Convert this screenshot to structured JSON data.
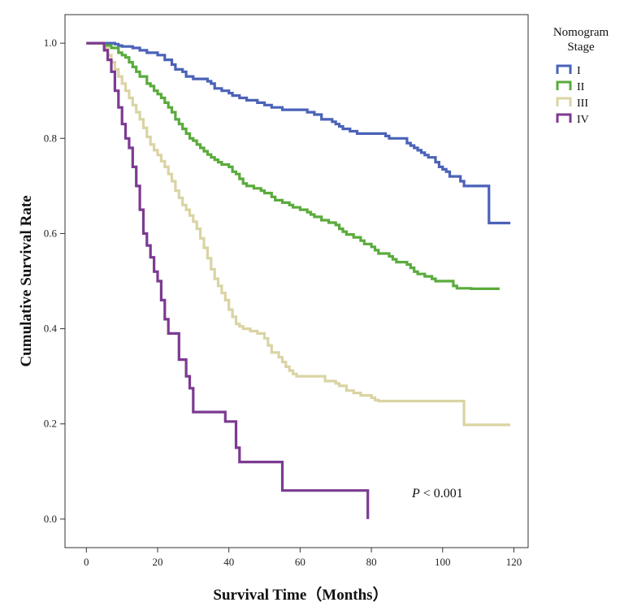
{
  "chart_data": {
    "type": "line",
    "subtype": "kaplan-meier step",
    "title": "",
    "xlabel": "Survival Time（Months）",
    "ylabel": "Cumulative Survival Rate",
    "xlim": [
      -6,
      124
    ],
    "ylim": [
      -0.06,
      1.06
    ],
    "xticks": [
      0,
      20,
      40,
      60,
      80,
      100,
      120
    ],
    "xtick_labels": [
      "0",
      "20",
      "40",
      "60",
      "80",
      "100",
      "120"
    ],
    "yticks": [
      0.0,
      0.2,
      0.4,
      0.6,
      0.8,
      1.0
    ],
    "ytick_labels": [
      "0.0",
      "0.2",
      "0.4",
      "0.6",
      "0.8",
      "1.0"
    ],
    "grid": false,
    "legend": {
      "title_lines": [
        "Nomogram",
        "Stage"
      ],
      "position": "top-right outside plot"
    },
    "annotation": {
      "italic": "P",
      "text": " < 0.001"
    },
    "series": [
      {
        "name": "I",
        "color": "#4a62b8",
        "points": [
          [
            0,
            1.0
          ],
          [
            5,
            1.0
          ],
          [
            8,
            0.998
          ],
          [
            9,
            0.995
          ],
          [
            10,
            0.993
          ],
          [
            13,
            0.99
          ],
          [
            15,
            0.985
          ],
          [
            17,
            0.98
          ],
          [
            20,
            0.975
          ],
          [
            22,
            0.965
          ],
          [
            24,
            0.955
          ],
          [
            25,
            0.945
          ],
          [
            27,
            0.94
          ],
          [
            28,
            0.93
          ],
          [
            30,
            0.925
          ],
          [
            34,
            0.92
          ],
          [
            35,
            0.915
          ],
          [
            36,
            0.905
          ],
          [
            38,
            0.9
          ],
          [
            40,
            0.895
          ],
          [
            41,
            0.89
          ],
          [
            43,
            0.885
          ],
          [
            45,
            0.88
          ],
          [
            48,
            0.875
          ],
          [
            50,
            0.87
          ],
          [
            52,
            0.865
          ],
          [
            55,
            0.86
          ],
          [
            60,
            0.86
          ],
          [
            62,
            0.855
          ],
          [
            64,
            0.85
          ],
          [
            66,
            0.84
          ],
          [
            69,
            0.835
          ],
          [
            70,
            0.83
          ],
          [
            71,
            0.825
          ],
          [
            72,
            0.82
          ],
          [
            74,
            0.815
          ],
          [
            76,
            0.81
          ],
          [
            83,
            0.81
          ],
          [
            84,
            0.805
          ],
          [
            85,
            0.8
          ],
          [
            89,
            0.8
          ],
          [
            90,
            0.79
          ],
          [
            91,
            0.785
          ],
          [
            92,
            0.78
          ],
          [
            93,
            0.775
          ],
          [
            94,
            0.77
          ],
          [
            95,
            0.765
          ],
          [
            96,
            0.76
          ],
          [
            98,
            0.75
          ],
          [
            99,
            0.74
          ],
          [
            100,
            0.735
          ],
          [
            101,
            0.73
          ],
          [
            102,
            0.72
          ],
          [
            104,
            0.72
          ],
          [
            105,
            0.71
          ],
          [
            106,
            0.7
          ],
          [
            113,
            0.7
          ],
          [
            113,
            0.622
          ],
          [
            119,
            0.622
          ]
        ]
      },
      {
        "name": "II",
        "color": "#5aab3c",
        "points": [
          [
            0,
            1.0
          ],
          [
            4,
            1.0
          ],
          [
            5,
            0.995
          ],
          [
            7,
            0.99
          ],
          [
            9,
            0.98
          ],
          [
            10,
            0.975
          ],
          [
            11,
            0.97
          ],
          [
            12,
            0.96
          ],
          [
            13,
            0.95
          ],
          [
            14,
            0.94
          ],
          [
            15,
            0.93
          ],
          [
            17,
            0.915
          ],
          [
            18,
            0.91
          ],
          [
            19,
            0.9
          ],
          [
            20,
            0.893
          ],
          [
            21,
            0.885
          ],
          [
            22,
            0.875
          ],
          [
            23,
            0.865
          ],
          [
            24,
            0.855
          ],
          [
            25,
            0.84
          ],
          [
            26,
            0.83
          ],
          [
            27,
            0.82
          ],
          [
            28,
            0.81
          ],
          [
            29,
            0.8
          ],
          [
            30,
            0.795
          ],
          [
            31,
            0.787
          ],
          [
            32,
            0.78
          ],
          [
            33,
            0.773
          ],
          [
            34,
            0.766
          ],
          [
            35,
            0.76
          ],
          [
            36,
            0.755
          ],
          [
            37,
            0.75
          ],
          [
            38,
            0.745
          ],
          [
            40,
            0.74
          ],
          [
            41,
            0.73
          ],
          [
            42,
            0.725
          ],
          [
            43,
            0.715
          ],
          [
            44,
            0.705
          ],
          [
            45,
            0.7
          ],
          [
            47,
            0.695
          ],
          [
            49,
            0.69
          ],
          [
            50,
            0.685
          ],
          [
            52,
            0.677
          ],
          [
            53,
            0.67
          ],
          [
            55,
            0.665
          ],
          [
            57,
            0.66
          ],
          [
            58,
            0.655
          ],
          [
            60,
            0.65
          ],
          [
            62,
            0.645
          ],
          [
            63,
            0.64
          ],
          [
            64,
            0.635
          ],
          [
            66,
            0.628
          ],
          [
            68,
            0.623
          ],
          [
            70,
            0.618
          ],
          [
            71,
            0.61
          ],
          [
            72,
            0.604
          ],
          [
            73,
            0.598
          ],
          [
            75,
            0.592
          ],
          [
            77,
            0.585
          ],
          [
            78,
            0.578
          ],
          [
            80,
            0.572
          ],
          [
            81,
            0.565
          ],
          [
            82,
            0.558
          ],
          [
            84,
            0.558
          ],
          [
            85,
            0.552
          ],
          [
            86,
            0.546
          ],
          [
            87,
            0.54
          ],
          [
            89,
            0.54
          ],
          [
            90,
            0.535
          ],
          [
            91,
            0.528
          ],
          [
            92,
            0.52
          ],
          [
            93,
            0.515
          ],
          [
            95,
            0.51
          ],
          [
            97,
            0.505
          ],
          [
            98,
            0.5
          ],
          [
            102,
            0.5
          ],
          [
            103,
            0.49
          ],
          [
            104,
            0.485
          ],
          [
            108,
            0.484
          ],
          [
            116,
            0.484
          ]
        ]
      },
      {
        "name": "III",
        "color": "#dad4a4",
        "points": [
          [
            0,
            1.0
          ],
          [
            4,
            1.0
          ],
          [
            5,
            0.99
          ],
          [
            6,
            0.975
          ],
          [
            7,
            0.96
          ],
          [
            8,
            0.945
          ],
          [
            9,
            0.93
          ],
          [
            10,
            0.915
          ],
          [
            11,
            0.9
          ],
          [
            12,
            0.885
          ],
          [
            13,
            0.87
          ],
          [
            14,
            0.855
          ],
          [
            15,
            0.84
          ],
          [
            16,
            0.822
          ],
          [
            17,
            0.803
          ],
          [
            18,
            0.787
          ],
          [
            19,
            0.775
          ],
          [
            20,
            0.765
          ],
          [
            21,
            0.752
          ],
          [
            22,
            0.74
          ],
          [
            23,
            0.725
          ],
          [
            24,
            0.71
          ],
          [
            25,
            0.69
          ],
          [
            26,
            0.675
          ],
          [
            27,
            0.66
          ],
          [
            28,
            0.65
          ],
          [
            29,
            0.638
          ],
          [
            30,
            0.625
          ],
          [
            31,
            0.61
          ],
          [
            32,
            0.59
          ],
          [
            33,
            0.57
          ],
          [
            34,
            0.548
          ],
          [
            35,
            0.525
          ],
          [
            36,
            0.505
          ],
          [
            37,
            0.49
          ],
          [
            38,
            0.475
          ],
          [
            39,
            0.46
          ],
          [
            40,
            0.44
          ],
          [
            41,
            0.425
          ],
          [
            42,
            0.41
          ],
          [
            43,
            0.405
          ],
          [
            44,
            0.4
          ],
          [
            46,
            0.395
          ],
          [
            48,
            0.39
          ],
          [
            50,
            0.38
          ],
          [
            51,
            0.365
          ],
          [
            52,
            0.35
          ],
          [
            54,
            0.34
          ],
          [
            55,
            0.33
          ],
          [
            56,
            0.32
          ],
          [
            57,
            0.312
          ],
          [
            58,
            0.305
          ],
          [
            59,
            0.3
          ],
          [
            66,
            0.3
          ],
          [
            67,
            0.29
          ],
          [
            70,
            0.285
          ],
          [
            71,
            0.28
          ],
          [
            73,
            0.27
          ],
          [
            75,
            0.265
          ],
          [
            77,
            0.26
          ],
          [
            80,
            0.255
          ],
          [
            81,
            0.25
          ],
          [
            82,
            0.248
          ],
          [
            106,
            0.248
          ],
          [
            106,
            0.198
          ],
          [
            119,
            0.198
          ]
        ]
      },
      {
        "name": "IV",
        "color": "#7c3a92",
        "points": [
          [
            0,
            1.0
          ],
          [
            4,
            1.0
          ],
          [
            5,
            0.985
          ],
          [
            6,
            0.965
          ],
          [
            7,
            0.94
          ],
          [
            8,
            0.9
          ],
          [
            9,
            0.865
          ],
          [
            10,
            0.83
          ],
          [
            11,
            0.8
          ],
          [
            12,
            0.78
          ],
          [
            13,
            0.74
          ],
          [
            14,
            0.7
          ],
          [
            15,
            0.65
          ],
          [
            16,
            0.6
          ],
          [
            17,
            0.575
          ],
          [
            18,
            0.55
          ],
          [
            19,
            0.52
          ],
          [
            20,
            0.5
          ],
          [
            21,
            0.46
          ],
          [
            22,
            0.42
          ],
          [
            23,
            0.39
          ],
          [
            25,
            0.39
          ],
          [
            26,
            0.335
          ],
          [
            28,
            0.3
          ],
          [
            29,
            0.275
          ],
          [
            30,
            0.225
          ],
          [
            38,
            0.225
          ],
          [
            39,
            0.205
          ],
          [
            41,
            0.205
          ],
          [
            42,
            0.15
          ],
          [
            43,
            0.12
          ],
          [
            51,
            0.12
          ],
          [
            55,
            0.12
          ],
          [
            55,
            0.06
          ],
          [
            79,
            0.06
          ],
          [
            79,
            0.0
          ]
        ]
      }
    ]
  }
}
